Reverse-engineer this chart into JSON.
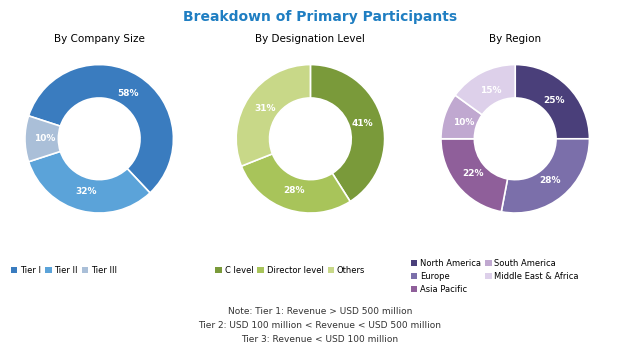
{
  "title": "Breakdown of Primary Participants",
  "title_color": "#1F7EC2",
  "background_color": "#FFFFFF",
  "pie1_title": "By Company Size",
  "pie1_values": [
    58,
    32,
    10
  ],
  "pie1_labels": [
    "58%",
    "32%",
    "10%"
  ],
  "pie1_colors": [
    "#3A7CBF",
    "#5BA3D9",
    "#AABFD8"
  ],
  "pie1_legend": [
    "Tier I",
    "Tier II",
    "Tier III"
  ],
  "pie1_startangle": 162,
  "pie2_title": "By Designation Level",
  "pie2_values": [
    41,
    28,
    31
  ],
  "pie2_labels": [
    "41%",
    "28%",
    "31%"
  ],
  "pie2_colors": [
    "#7A9A3A",
    "#A8C45A",
    "#C8D888"
  ],
  "pie2_legend": [
    "C level",
    "Director level",
    "Others"
  ],
  "pie2_startangle": 90,
  "pie3_title": "By Region",
  "pie3_values": [
    25,
    28,
    22,
    10,
    15
  ],
  "pie3_labels": [
    "25%",
    "28%",
    "22%",
    "10%",
    "15%"
  ],
  "pie3_colors": [
    "#4A3F7A",
    "#7B6FAA",
    "#8F5F9A",
    "#C0A8D0",
    "#DDD0EA"
  ],
  "pie3_legend": [
    "North America",
    "Europe",
    "Asia Pacific",
    "South America",
    "Middle East & Africa"
  ],
  "pie3_startangle": 90,
  "note_lines": [
    "Note: Tier 1: Revenue > USD 500 million",
    "Tier 2: USD 100 million < Revenue < USD 500 million",
    "Tier 3: Revenue < USD 100 million"
  ]
}
